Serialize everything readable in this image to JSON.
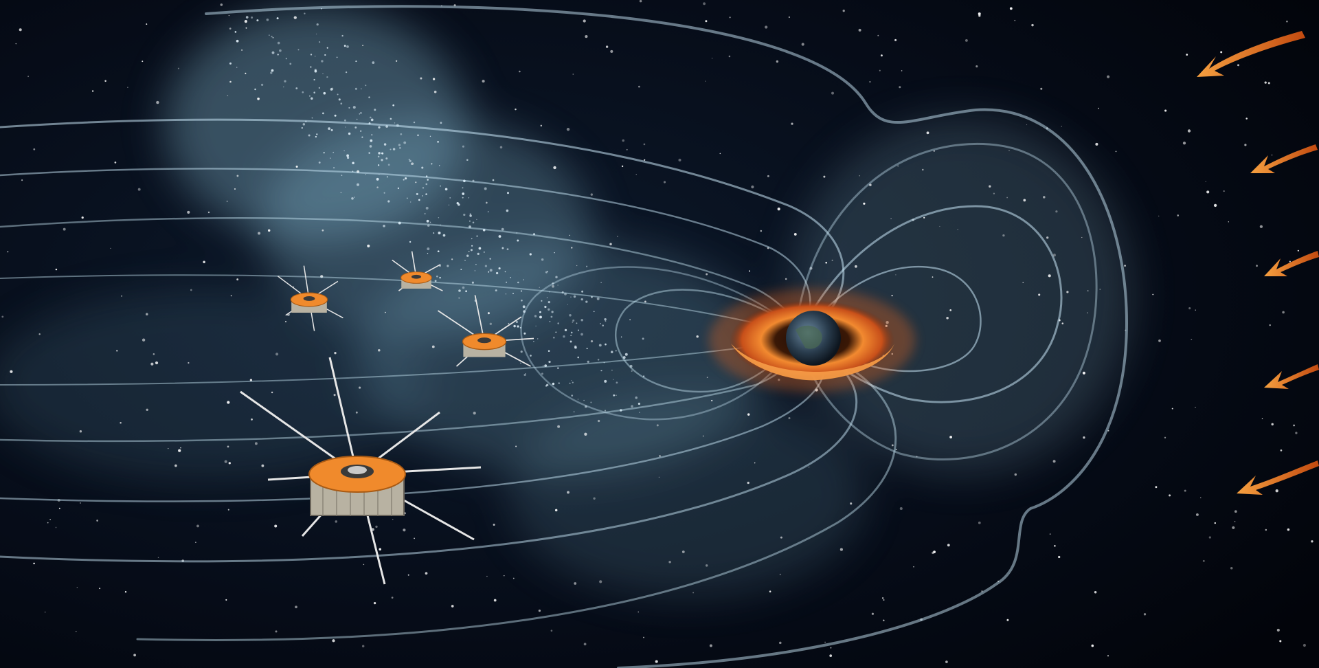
{
  "scene": {
    "kind": "artistic illustration, no visible text",
    "colors": {
      "space_background": "#050a16",
      "field_lines": "#c8e6f5",
      "plasma_glow": "#8fc6dc",
      "radiation_belt": "#e8661c",
      "planet": "#2a3d4e",
      "spacecraft_body": "#f08a2c",
      "solar_wind_arrows": "#f07a22"
    },
    "elements": [
      {
        "name": "planet-with-radiation-belt",
        "icon": "earth-icon"
      },
      {
        "name": "magnetosphere-field-lines",
        "count": 12
      },
      {
        "name": "plasma-sheet-glow"
      },
      {
        "name": "spacecraft",
        "count": 4
      },
      {
        "name": "solar-wind-arrows",
        "count": 5
      },
      {
        "name": "star-field"
      }
    ]
  }
}
